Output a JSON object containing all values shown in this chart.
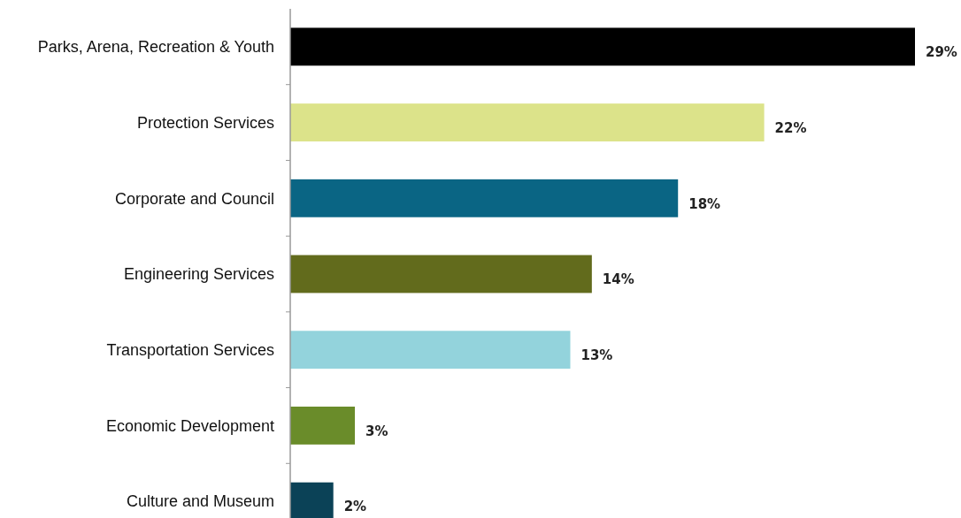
{
  "chart_data": {
    "type": "bar",
    "orientation": "horizontal",
    "categories": [
      "Parks, Arena, Recreation & Youth",
      "Protection Services",
      "Corporate and Council",
      "Engineering Services",
      "Transportation Services",
      "Economic Development",
      "Culture and Museum"
    ],
    "values": [
      29,
      22,
      18,
      14,
      13,
      3,
      2
    ],
    "colors": [
      "#000000",
      "#dce38a",
      "#0a6584",
      "#626b1c",
      "#93d3dc",
      "#6a8c2a",
      "#0b4257"
    ],
    "value_labels": [
      "29%",
      "22%",
      "18%",
      "14%",
      "13%",
      "3%",
      "2%"
    ]
  }
}
